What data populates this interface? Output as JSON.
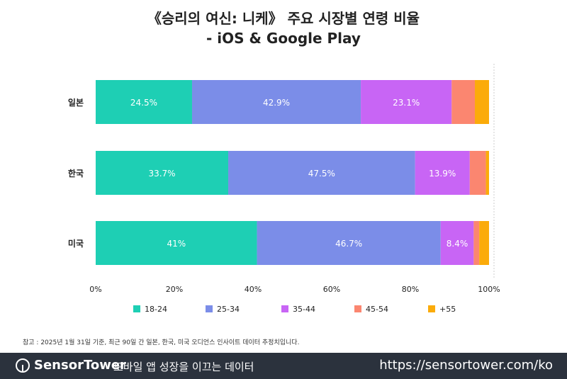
{
  "chart_data": {
    "type": "bar",
    "orientation": "horizontal",
    "stacked": true,
    "title": "《승리의 여신: 니케》 주요 시장별 연령 비율",
    "subtitle": "- iOS & Google Play",
    "categories": [
      "일본",
      "한국",
      "미국"
    ],
    "series": [
      {
        "name": "18-24",
        "color": "#1ecfb4",
        "values": [
          24.5,
          33.7,
          41
        ],
        "labels": [
          "24.5%",
          "33.7%",
          "41%"
        ]
      },
      {
        "name": "25-34",
        "color": "#7b8de8",
        "values": [
          42.9,
          47.5,
          46.7
        ],
        "labels": [
          "42.9%",
          "47.5%",
          "46.7%"
        ]
      },
      {
        "name": "35-44",
        "color": "#c865f5",
        "values": [
          23.1,
          13.9,
          8.4
        ],
        "labels": [
          "23.1%",
          "13.9%",
          "8.4%"
        ]
      },
      {
        "name": "45-54",
        "color": "#fb8670",
        "values": [
          5.9,
          4.1,
          1.4
        ],
        "labels": [
          "",
          "",
          ""
        ]
      },
      {
        "name": "+55",
        "color": "#fbab0a",
        "values": [
          3.6,
          0.8,
          2.5
        ],
        "labels": [
          "",
          "",
          ""
        ]
      }
    ],
    "xlim": [
      0,
      100
    ],
    "xticks": [
      "0%",
      "20%",
      "40%",
      "60%",
      "80%",
      "100%"
    ],
    "grid": false,
    "legend": "bottom"
  },
  "watermark": "SensorTower",
  "note": "참고 : 2025년 1월 31일 기준, 최근 90일 간 일본, 한국, 미국 오디언스 인사이트 데이터 추정치입니다.",
  "footer": {
    "brand": "SensorTower",
    "tagline": "모바일 앱 성장을 이끄는 데이터",
    "url": "https://sensortower.com/ko"
  }
}
